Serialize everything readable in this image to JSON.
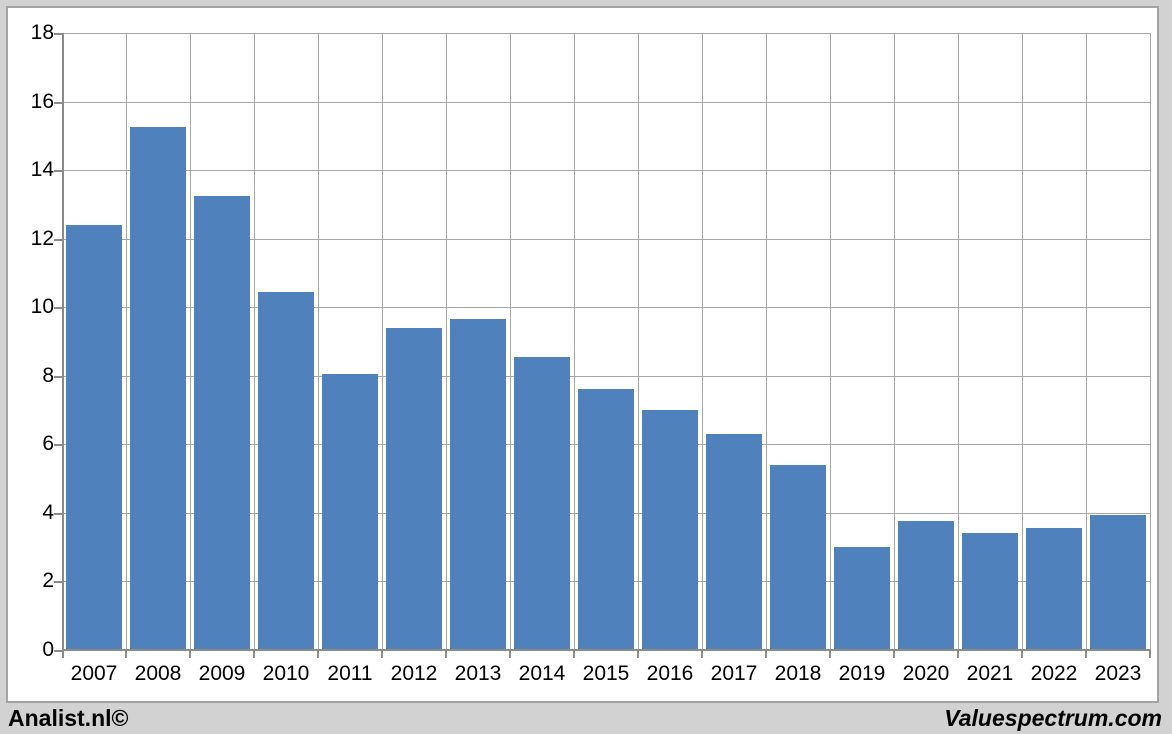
{
  "page": {
    "background": "#d2d2d2"
  },
  "footer": {
    "left_brand": "Analist.nl©",
    "right_brand": "Valuespectrum.com"
  },
  "chart_data": {
    "type": "bar",
    "title": "",
    "xlabel": "",
    "ylabel": "",
    "categories": [
      "2007",
      "2008",
      "2009",
      "2010",
      "2011",
      "2012",
      "2013",
      "2014",
      "2015",
      "2016",
      "2017",
      "2018",
      "2019",
      "2020",
      "2021",
      "2022",
      "2023"
    ],
    "values": [
      12.4,
      15.25,
      13.25,
      10.45,
      8.05,
      9.4,
      9.65,
      8.55,
      7.6,
      7.0,
      6.3,
      5.4,
      3.0,
      3.75,
      3.4,
      3.55,
      3.95
    ],
    "ylim": [
      0,
      18
    ],
    "yticks": [
      0,
      2,
      4,
      6,
      8,
      10,
      12,
      14,
      16,
      18
    ],
    "grid": true,
    "legend_position": "none",
    "bar_color": "#4F81BD",
    "gridline_color": "#A6A6A6",
    "axis_color": "#8A8A8A",
    "plot_background": "#FFFFFF",
    "frame_border_color": "#A3A3A3"
  }
}
